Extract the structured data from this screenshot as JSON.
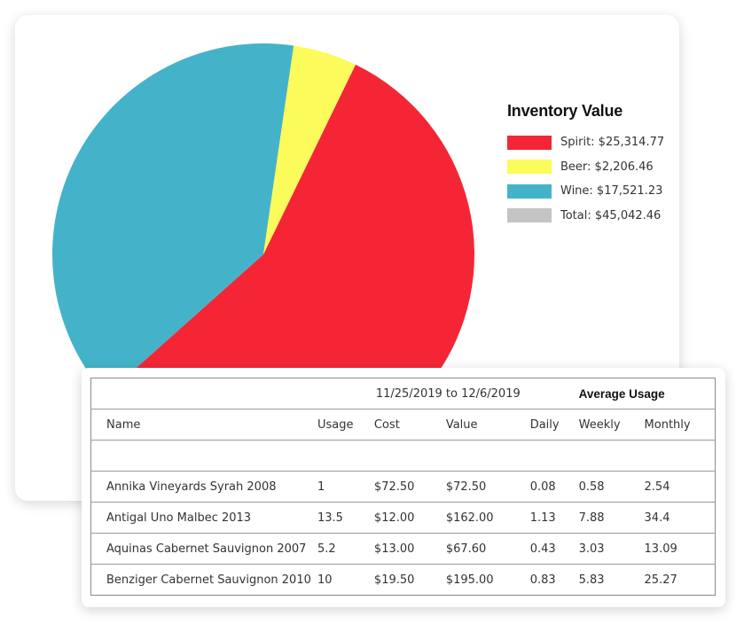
{
  "chart_data": {
    "type": "pie",
    "title": "Inventory Value",
    "slices": [
      {
        "label": "Spirit",
        "value": 25314.77,
        "display": "Spirit: $25,314.77",
        "color": "#f42636"
      },
      {
        "label": "Beer",
        "value": 2206.46,
        "display": "Beer: $2,206.46",
        "color": "#fbfb5b"
      },
      {
        "label": "Wine",
        "value": 17521.23,
        "display": "Wine: $17,521.23",
        "color": "#44b3c9"
      }
    ],
    "total": {
      "label": "Total",
      "value": 45042.46,
      "display": "Total: $45,042.46",
      "color": "#c4c4c4"
    }
  },
  "legend": {
    "title": "Inventory Value",
    "items": [
      {
        "label": "Spirit: $25,314.77",
        "color": "#f42636"
      },
      {
        "label": "Beer: $2,206.46",
        "color": "#fbfb5b"
      },
      {
        "label": "Wine: $17,521.23",
        "color": "#44b3c9"
      },
      {
        "label": "Total: $45,042.46",
        "color": "#c4c4c4"
      }
    ]
  },
  "table": {
    "date_range": "11/25/2019 to 12/6/2019",
    "average_usage": "Average Usage",
    "headers": [
      "Name",
      "Usage",
      "Cost",
      "Value",
      "Daily",
      "Weekly",
      "Monthly"
    ],
    "rows": [
      [
        "Annika Vineyards Syrah 2008",
        "1",
        "$72.50",
        "$72.50",
        "0.08",
        "0.58",
        "2.54"
      ],
      [
        "Antigal Uno Malbec 2013",
        "13.5",
        "$12.00",
        "$162.00",
        "1.13",
        "7.88",
        "34.4"
      ],
      [
        "Aquinas Cabernet Sauvignon 2007",
        "5.2",
        "$13.00",
        "$67.60",
        "0.43",
        "3.03",
        "13.09"
      ],
      [
        "Benziger Cabernet Sauvignon 2010",
        "10",
        "$19.50",
        "$195.00",
        "0.83",
        "5.83",
        "25.27"
      ]
    ]
  }
}
